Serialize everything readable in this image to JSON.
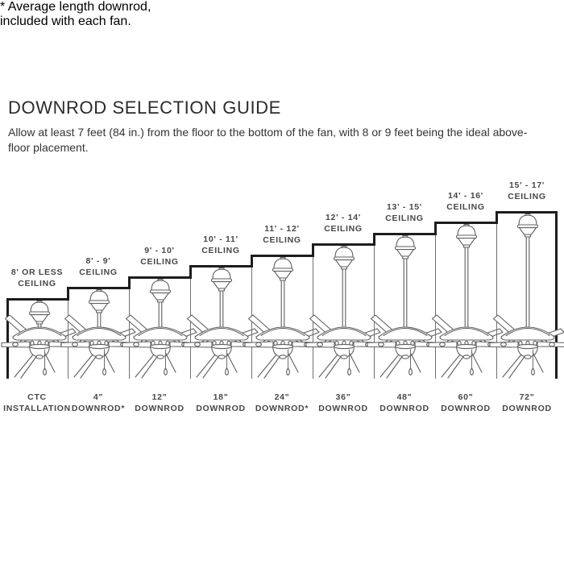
{
  "page": {
    "title": "DOWNROD SELECTION GUIDE",
    "intro": "Allow at least 7 feet (84 in.) from the floor to the bottom of the fan, with 8 or 9 feet being the ideal above-floor placement.",
    "footnote_line1": "* Average length downrod,",
    "footnote_line2": "included with each fan."
  },
  "colors": {
    "stair_line": "#1d1d1d",
    "separator_line": "#707070",
    "fan_line_art": "#5f5f5f",
    "title_text": "#2b2b2b",
    "label_text": "#474747"
  },
  "fans": [
    {
      "ceiling_line1": "8' OR LESS",
      "ceiling_line2": "CEILING",
      "rod_line1": "CTC",
      "rod_line2": "INSTALLATION"
    },
    {
      "ceiling_line1": "8' - 9'",
      "ceiling_line2": "CEILING",
      "rod_line1": "4\"",
      "rod_line2": "DOWNROD*"
    },
    {
      "ceiling_line1": "9' - 10'",
      "ceiling_line2": "CEILING",
      "rod_line1": "12\"",
      "rod_line2": "DOWNROD"
    },
    {
      "ceiling_line1": "10' - 11'",
      "ceiling_line2": "CEILING",
      "rod_line1": "18\"",
      "rod_line2": "DOWNROD"
    },
    {
      "ceiling_line1": "11' - 12'",
      "ceiling_line2": "CEILING",
      "rod_line1": "24\"",
      "rod_line2": "DOWNROD*"
    },
    {
      "ceiling_line1": "12' - 14'",
      "ceiling_line2": "CEILING",
      "rod_line1": "36\"",
      "rod_line2": "DOWNROD"
    },
    {
      "ceiling_line1": "13' - 15'",
      "ceiling_line2": "CEILING",
      "rod_line1": "48\"",
      "rod_line2": "DOWNROD"
    },
    {
      "ceiling_line1": "14' - 16'",
      "ceiling_line2": "CEILING",
      "rod_line1": "60\"",
      "rod_line2": "DOWNROD"
    },
    {
      "ceiling_line1": "15' - 17'",
      "ceiling_line2": "CEILING",
      "rod_line1": "72\"",
      "rod_line2": "DOWNROD"
    }
  ]
}
